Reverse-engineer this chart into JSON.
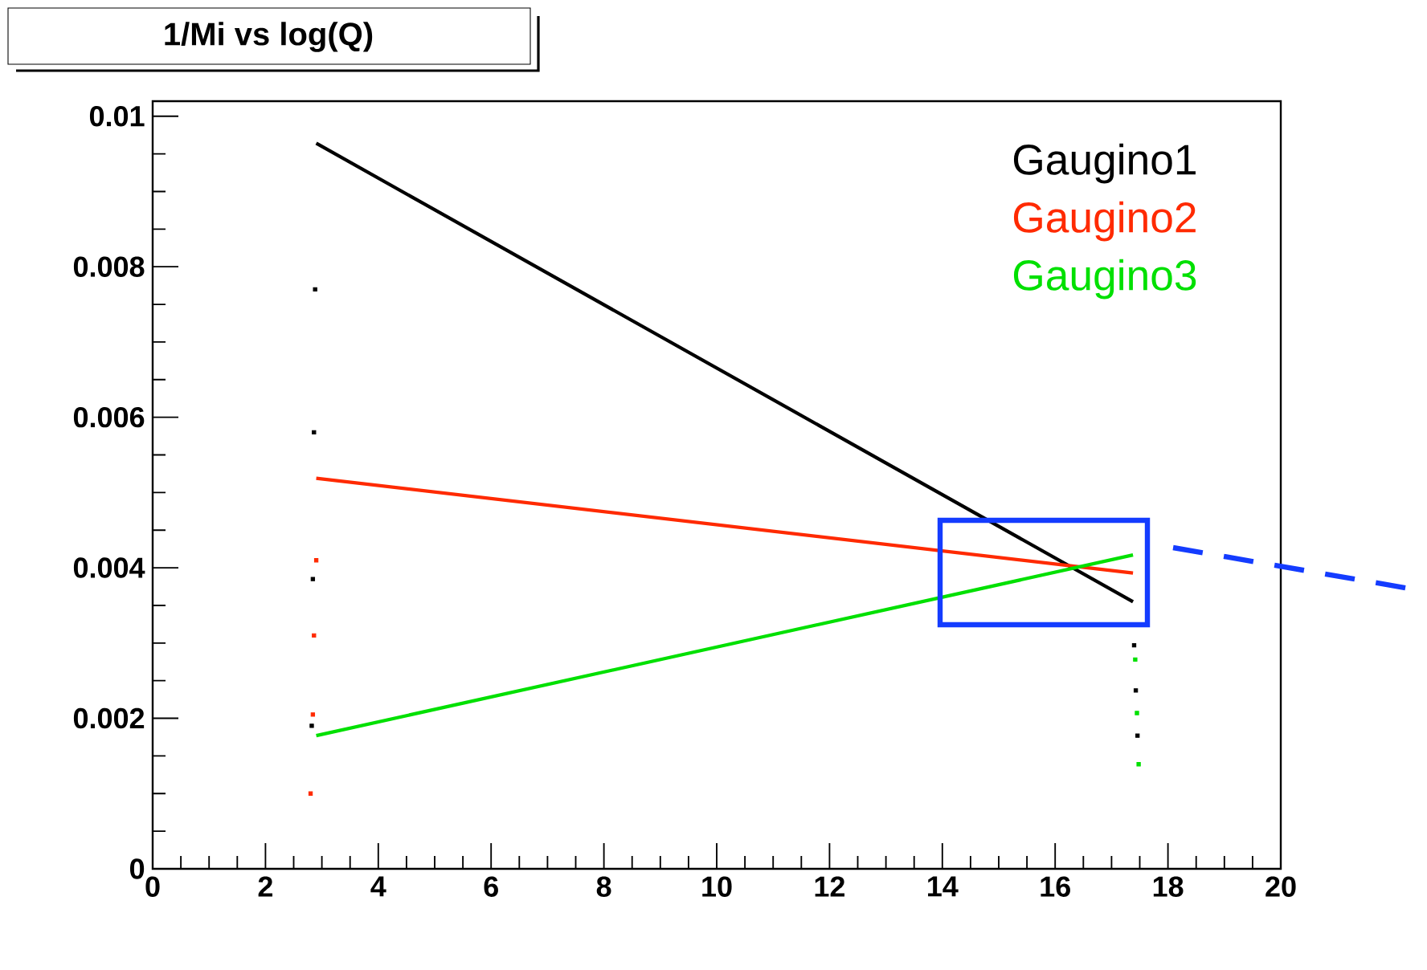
{
  "chart_data": {
    "type": "line",
    "title": "1/Mi vs log(Q)",
    "xlim": [
      0,
      20
    ],
    "ylim": [
      0,
      0.0102
    ],
    "xticks": [
      0,
      2,
      4,
      6,
      8,
      10,
      12,
      14,
      16,
      18,
      20
    ],
    "yticks": [
      0,
      0.002,
      0.004,
      0.006,
      0.008,
      0.01
    ],
    "legend": "top right",
    "grid": false,
    "series": [
      {
        "name": "Gaugino1",
        "color": "#000000",
        "x": [
          2.9,
          17.38
        ],
        "values": [
          0.00964,
          0.00355
        ]
      },
      {
        "name": "Gaugino2",
        "color": "#ff2a00",
        "x": [
          2.9,
          17.38
        ],
        "values": [
          0.00519,
          0.00393
        ]
      },
      {
        "name": "Gaugino3",
        "color": "#00e000",
        "x": [
          2.9,
          17.38
        ],
        "values": [
          0.00177,
          0.00417
        ]
      },
      {
        "type": "scatter",
        "marker": "square",
        "color": "#000000",
        "x": [
          2.88,
          2.86,
          2.84,
          2.82,
          17.4,
          17.43,
          17.46
        ],
        "values": [
          0.0077,
          0.0058,
          0.00385,
          0.0019,
          0.00297,
          0.00237,
          0.00177
        ]
      },
      {
        "type": "scatter",
        "marker": "square",
        "color": "#ff2a00",
        "x": [
          2.9,
          2.86,
          2.84,
          2.8
        ],
        "values": [
          0.0041,
          0.0031,
          0.00205,
          0.001
        ]
      },
      {
        "type": "scatter",
        "marker": "square",
        "color": "#00e000",
        "x": [
          17.42,
          17.45,
          17.48
        ],
        "values": [
          0.00278,
          0.00207,
          0.00139
        ]
      }
    ]
  }
}
